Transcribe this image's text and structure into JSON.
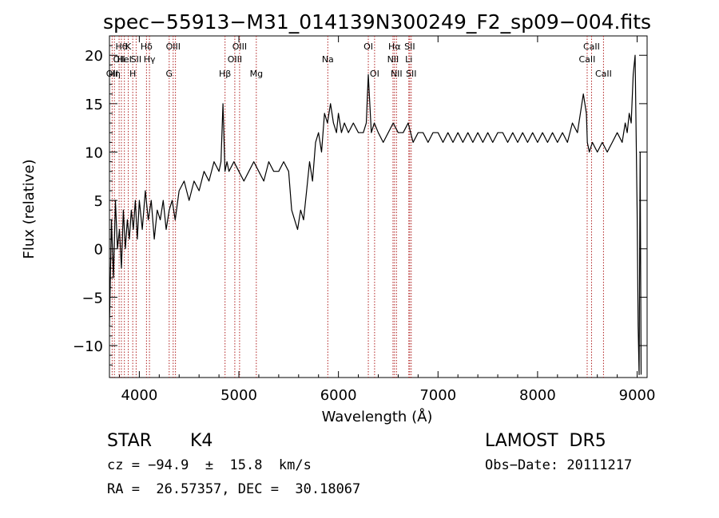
{
  "chart_data": {
    "type": "line",
    "title": "spec−55913−M31_014139N300249_F2_sp09−004.fits",
    "xlabel": "Wavelength (Å)",
    "ylabel": "Flux (relative)",
    "xlim": [
      3700,
      9100
    ],
    "ylim": [
      -13.3,
      22
    ],
    "xticks": [
      4000,
      5000,
      6000,
      7000,
      8000,
      9000
    ],
    "xtick_labels": [
      "4000",
      "5000",
      "6000",
      "7000",
      "8000",
      "9000"
    ],
    "yticks": [
      -10,
      -5,
      0,
      5,
      10,
      15,
      20
    ],
    "ytick_labels": [
      "−10",
      "−5",
      "0",
      "5",
      "10",
      "15",
      "20"
    ],
    "grid": false,
    "series": [
      {
        "x": [
          3700,
          3720,
          3740,
          3760,
          3780,
          3800,
          3820,
          3840,
          3860,
          3880,
          3900,
          3920,
          3940,
          3960,
          3980,
          4000,
          4030,
          4060,
          4090,
          4120,
          4150,
          4180,
          4210,
          4240,
          4270,
          4300,
          4330,
          4360,
          4400,
          4450,
          4500,
          4550,
          4600,
          4650,
          4700,
          4750,
          4800,
          4820,
          4840,
          4860,
          4880,
          4900,
          4950,
          5000,
          5050,
          5100,
          5150,
          5200,
          5250,
          5300,
          5350,
          5400,
          5450,
          5500,
          5530,
          5560,
          5590,
          5620,
          5650,
          5680,
          5710,
          5740,
          5770,
          5800,
          5830,
          5860,
          5890,
          5920,
          5950,
          5980,
          6000,
          6030,
          6060,
          6100,
          6150,
          6200,
          6250,
          6280,
          6300,
          6330,
          6360,
          6400,
          6450,
          6500,
          6550,
          6600,
          6650,
          6700,
          6750,
          6800,
          6850,
          6900,
          6950,
          7000,
          7050,
          7100,
          7150,
          7200,
          7250,
          7300,
          7350,
          7400,
          7450,
          7500,
          7550,
          7600,
          7650,
          7700,
          7750,
          7800,
          7850,
          7900,
          7950,
          8000,
          8050,
          8100,
          8150,
          8200,
          8250,
          8300,
          8350,
          8400,
          8430,
          8460,
          8490,
          8500,
          8520,
          8550,
          8600,
          8650,
          8700,
          8750,
          8800,
          8850,
          8880,
          8900,
          8920,
          8940,
          8960,
          8980,
          9000,
          9010,
          9020,
          9030,
          9040
        ],
        "y": [
          -8,
          3,
          -3,
          5,
          0,
          2,
          -2,
          4,
          0,
          3,
          1,
          4,
          2,
          5,
          1,
          5,
          2,
          6,
          3,
          5,
          1,
          4,
          3,
          5,
          2,
          4,
          5,
          3,
          6,
          7,
          5,
          7,
          6,
          8,
          7,
          9,
          8,
          9,
          15,
          8,
          9,
          8,
          9,
          8,
          7,
          8,
          9,
          8,
          7,
          9,
          8,
          8,
          9,
          8,
          4,
          3,
          2,
          4,
          3,
          6,
          9,
          7,
          11,
          12,
          10,
          14,
          13,
          15,
          13,
          12,
          14,
          12,
          13,
          12,
          13,
          12,
          12,
          13,
          18,
          12,
          13,
          12,
          11,
          12,
          13,
          12,
          12,
          13,
          11,
          12,
          12,
          11,
          12,
          12,
          11,
          12,
          11,
          12,
          11,
          12,
          11,
          12,
          11,
          12,
          11,
          12,
          12,
          11,
          12,
          11,
          12,
          11,
          12,
          11,
          12,
          11,
          12,
          11,
          12,
          11,
          13,
          12,
          14,
          16,
          14,
          11,
          10,
          11,
          10,
          11,
          10,
          11,
          12,
          11,
          13,
          12,
          14,
          13,
          18,
          20,
          4,
          -8,
          -13,
          10,
          -13
        ]
      }
    ],
    "lines": [
      {
        "x": 3727,
        "labels": [
          "OII"
        ],
        "rows": [
          3
        ]
      },
      {
        "x": 3750,
        "labels": [
          "Hη"
        ],
        "rows": [
          3
        ]
      },
      {
        "x": 3797,
        "labels": [
          "OII"
        ],
        "rows": [
          2
        ]
      },
      {
        "x": 3820,
        "labels": [
          "Hθ"
        ],
        "rows": [
          1
        ]
      },
      {
        "x": 3850,
        "labels": [
          "HeI"
        ],
        "rows": [
          2
        ]
      },
      {
        "x": 3889,
        "labels": [
          "K"
        ],
        "rows": [
          1
        ]
      },
      {
        "x": 3934,
        "labels": [
          "H"
        ],
        "rows": [
          3
        ]
      },
      {
        "x": 3968,
        "labels": [
          "SII"
        ],
        "rows": [
          2
        ]
      },
      {
        "x": 4072,
        "labels": [
          "Hδ"
        ],
        "rows": [
          1
        ]
      },
      {
        "x": 4102,
        "labels": [
          "Hγ"
        ],
        "rows": [
          2
        ]
      },
      {
        "x": 4300,
        "labels": [
          "G"
        ],
        "rows": [
          3
        ]
      },
      {
        "x": 4340,
        "labels": [
          "OIII"
        ],
        "rows": [
          1
        ]
      },
      {
        "x": 4363,
        "labels": [],
        "rows": []
      },
      {
        "x": 4861,
        "labels": [
          "Hβ"
        ],
        "rows": [
          3
        ]
      },
      {
        "x": 4959,
        "labels": [
          "OIII"
        ],
        "rows": [
          2
        ]
      },
      {
        "x": 5007,
        "labels": [
          "OIII"
        ],
        "rows": [
          1
        ]
      },
      {
        "x": 5175,
        "labels": [
          "Mg"
        ],
        "rows": [
          3
        ]
      },
      {
        "x": 5893,
        "labels": [
          "Na"
        ],
        "rows": [
          2
        ]
      },
      {
        "x": 6300,
        "labels": [
          "OI"
        ],
        "rows": [
          1
        ]
      },
      {
        "x": 6363,
        "labels": [
          "OI"
        ],
        "rows": [
          3
        ]
      },
      {
        "x": 6548,
        "labels": [
          "NII"
        ],
        "rows": [
          2
        ]
      },
      {
        "x": 6563,
        "labels": [
          "Hα"
        ],
        "rows": [
          1
        ]
      },
      {
        "x": 6583,
        "labels": [
          "NII"
        ],
        "rows": [
          3
        ]
      },
      {
        "x": 6707,
        "labels": [
          "Li"
        ],
        "rows": [
          2
        ]
      },
      {
        "x": 6716,
        "labels": [
          "SII"
        ],
        "rows": [
          1
        ]
      },
      {
        "x": 6731,
        "labels": [
          "SII"
        ],
        "rows": [
          3
        ]
      },
      {
        "x": 8498,
        "labels": [
          "CaII"
        ],
        "rows": [
          2
        ]
      },
      {
        "x": 8542,
        "labels": [
          "CaII"
        ],
        "rows": [
          1
        ]
      },
      {
        "x": 8662,
        "labels": [
          "CaII"
        ],
        "rows": [
          3
        ]
      }
    ]
  },
  "info": {
    "object_class": "STAR",
    "subclass": "K4",
    "survey": "LAMOST  DR5",
    "redshift": "cz = −94.9  ±  15.8  km/s",
    "obs_date": "Obs−Date: 20111217",
    "coords": "RA =  26.57357, DEC =  30.18067"
  }
}
